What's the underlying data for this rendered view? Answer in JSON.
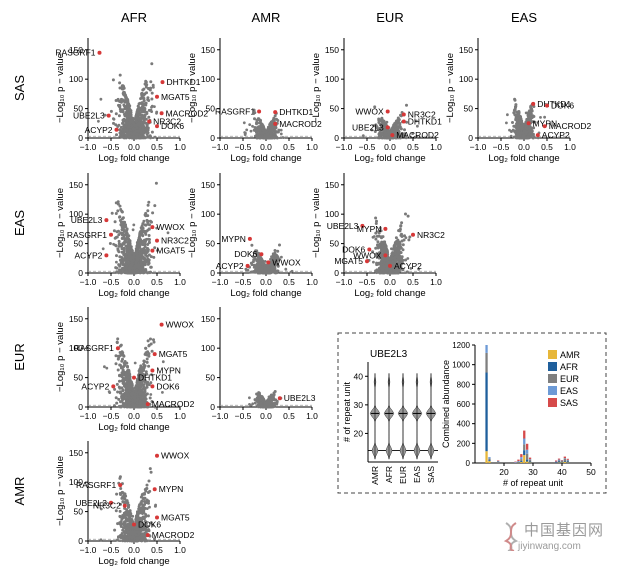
{
  "figure": {
    "column_titles": [
      "AFR",
      "AMR",
      "EUR",
      "EAS"
    ],
    "row_titles": [
      "SAS",
      "EAS",
      "EUR",
      "AMR"
    ],
    "x_label": "Log₂ fold change",
    "y_label": "−Log₁₀ p − value",
    "x_tick_labels": [
      "−1.0",
      "−0.5",
      "0.0",
      "0.5",
      "1.0"
    ],
    "y_tick_labels": [
      "0",
      "50",
      "100",
      "150"
    ],
    "colors": {
      "points": "#7a7a7a",
      "highlight": "#d63838",
      "threshold": "#9a9a9a",
      "frame": "#000000"
    }
  },
  "chart_data": [
    {
      "type": "scatter",
      "row": "SAS",
      "column": "AFR",
      "xlabel": "Log₂ fold change",
      "ylabel": "−Log₁₀ p − value",
      "xlim": [
        -1.0,
        1.0
      ],
      "ylim": [
        0,
        170
      ],
      "spread": 1.0,
      "peak": 155,
      "threshold": 3,
      "genes": [
        {
          "name": "RASGRF1",
          "x": -0.75,
          "y": 145
        },
        {
          "name": "DHTKD1",
          "x": 0.62,
          "y": 95
        },
        {
          "name": "MGAT5",
          "x": 0.5,
          "y": 70
        },
        {
          "name": "MACROD2",
          "x": 0.6,
          "y": 42
        },
        {
          "name": "NR3C2",
          "x": 0.33,
          "y": 28
        },
        {
          "name": "DOK6",
          "x": 0.5,
          "y": 20
        },
        {
          "name": "UBE2L3",
          "x": -0.55,
          "y": 38
        },
        {
          "name": "ACYP2",
          "x": -0.38,
          "y": 14
        }
      ]
    },
    {
      "type": "scatter",
      "row": "SAS",
      "column": "AMR",
      "xlabel": "Log₂ fold change",
      "ylabel": "−Log₁₀ p − value",
      "xlim": [
        -1.0,
        1.0
      ],
      "ylim": [
        0,
        170
      ],
      "spread": 0.6,
      "peak": 55,
      "threshold": 3,
      "genes": [
        {
          "name": "RASGRF1",
          "x": -0.15,
          "y": 45
        },
        {
          "name": "DHTKD1",
          "x": 0.2,
          "y": 44
        },
        {
          "name": "MACROD2",
          "x": 0.2,
          "y": 24
        }
      ]
    },
    {
      "type": "scatter",
      "row": "SAS",
      "column": "EUR",
      "xlabel": "Log₂ fold change",
      "ylabel": "−Log₁₀ p − value",
      "xlim": [
        -1.0,
        1.0
      ],
      "ylim": [
        0,
        170
      ],
      "spread": 0.75,
      "peak": 58,
      "threshold": 3,
      "genes": [
        {
          "name": "WWOX",
          "x": -0.05,
          "y": 45
        },
        {
          "name": "NR3C2",
          "x": 0.3,
          "y": 40
        },
        {
          "name": "UBE2L3",
          "x": -0.05,
          "y": 18
        },
        {
          "name": "DHTKD1",
          "x": 0.3,
          "y": 28
        },
        {
          "name": "MACROD2",
          "x": 0.05,
          "y": 5
        }
      ]
    },
    {
      "type": "scatter",
      "row": "SAS",
      "column": "EAS",
      "xlabel": "Log₂ fold change",
      "ylabel": "−Log₁₀ p − value",
      "xlim": [
        -1.0,
        1.0
      ],
      "ylim": [
        0,
        170
      ],
      "spread": 0.6,
      "peak": 88,
      "threshold": 3,
      "genes": [
        {
          "name": "DHTKD1",
          "x": 0.2,
          "y": 58
        },
        {
          "name": "DOK6",
          "x": 0.5,
          "y": 55
        },
        {
          "name": "MYPN",
          "x": 0.1,
          "y": 25
        },
        {
          "name": "MACROD2",
          "x": 0.45,
          "y": 20
        },
        {
          "name": "ACYP2",
          "x": 0.3,
          "y": 5
        }
      ]
    },
    {
      "type": "scatter",
      "row": "EAS",
      "column": "AFR",
      "xlabel": "Log₂ fold change",
      "ylabel": "−Log₁₀ p − value",
      "xlim": [
        -1.0,
        1.0
      ],
      "ylim": [
        0,
        170
      ],
      "spread": 1.0,
      "peak": 165,
      "threshold": 3,
      "genes": [
        {
          "name": "UBE2L3",
          "x": -0.6,
          "y": 90
        },
        {
          "name": "RASGRF1",
          "x": -0.5,
          "y": 65
        },
        {
          "name": "WWOX",
          "x": 0.4,
          "y": 78
        },
        {
          "name": "NR3C2",
          "x": 0.5,
          "y": 55
        },
        {
          "name": "MGAT5",
          "x": 0.4,
          "y": 38
        },
        {
          "name": "ACYP2",
          "x": -0.6,
          "y": 30
        }
      ]
    },
    {
      "type": "scatter",
      "row": "EAS",
      "column": "AMR",
      "xlabel": "Log₂ fold change",
      "ylabel": "−Log₁₀ p − value",
      "xlim": [
        -1.0,
        1.0
      ],
      "ylim": [
        0,
        170
      ],
      "spread": 0.75,
      "peak": 60,
      "threshold": 3,
      "genes": [
        {
          "name": "MYPN",
          "x": -0.35,
          "y": 58
        },
        {
          "name": "DOK6",
          "x": -0.1,
          "y": 32
        },
        {
          "name": "WWOX",
          "x": 0.05,
          "y": 18
        },
        {
          "name": "ACYP2",
          "x": -0.4,
          "y": 12
        }
      ]
    },
    {
      "type": "scatter",
      "row": "EAS",
      "column": "EUR",
      "xlabel": "Log₂ fold change",
      "ylabel": "−Log₁₀ p − value",
      "xlim": [
        -1.0,
        1.0
      ],
      "ylim": [
        0,
        170
      ],
      "spread": 0.85,
      "peak": 125,
      "threshold": 3,
      "genes": [
        {
          "name": "UBE2L3",
          "x": -0.6,
          "y": 80
        },
        {
          "name": "MYPN",
          "x": -0.1,
          "y": 75
        },
        {
          "name": "NR3C2",
          "x": 0.5,
          "y": 65
        },
        {
          "name": "DOK6",
          "x": -0.45,
          "y": 40
        },
        {
          "name": "WWOX",
          "x": -0.1,
          "y": 30
        },
        {
          "name": "MGAT5",
          "x": -0.5,
          "y": 20
        },
        {
          "name": "ACYP2",
          "x": 0.0,
          "y": 12
        }
      ]
    },
    {
      "type": "scatter",
      "row": "EUR",
      "column": "AFR",
      "xlabel": "Log₂ fold change",
      "ylabel": "−Log₁₀ p − value",
      "xlim": [
        -1.0,
        1.0
      ],
      "ylim": [
        0,
        170
      ],
      "spread": 0.95,
      "peak": 155,
      "threshold": 3,
      "genes": [
        {
          "name": "WWOX",
          "x": 0.6,
          "y": 140
        },
        {
          "name": "RASGRF1",
          "x": -0.35,
          "y": 100
        },
        {
          "name": "MGAT5",
          "x": 0.45,
          "y": 90
        },
        {
          "name": "MYPN",
          "x": 0.4,
          "y": 62
        },
        {
          "name": "DHTKD1",
          "x": 0.0,
          "y": 50
        },
        {
          "name": "DOK6",
          "x": 0.4,
          "y": 35
        },
        {
          "name": "ACYP2",
          "x": -0.45,
          "y": 35
        },
        {
          "name": "MACROD2",
          "x": 0.3,
          "y": 5
        }
      ]
    },
    {
      "type": "scatter",
      "row": "EUR",
      "column": "AMR",
      "xlabel": "",
      "ylabel": "",
      "xlim": [
        -1.0,
        1.0
      ],
      "ylim": [
        0,
        170
      ],
      "spread": 0.55,
      "peak": 38,
      "threshold": 3,
      "genes": [
        {
          "name": "UBE2L3",
          "x": 0.3,
          "y": 15
        }
      ]
    },
    {
      "type": "scatter",
      "row": "AMR",
      "column": "AFR",
      "xlabel": "Log₂ fold change",
      "ylabel": "−Log₁₀ p − value",
      "xlim": [
        -1.0,
        1.0
      ],
      "ylim": [
        0,
        170
      ],
      "spread": 0.9,
      "peak": 150,
      "threshold": 3,
      "genes": [
        {
          "name": "WWOX",
          "x": 0.5,
          "y": 145
        },
        {
          "name": "RASGRF1",
          "x": -0.3,
          "y": 95
        },
        {
          "name": "MYPN",
          "x": 0.45,
          "y": 88
        },
        {
          "name": "UBE2L3",
          "x": -0.5,
          "y": 65
        },
        {
          "name": "NR3C2",
          "x": -0.2,
          "y": 60
        },
        {
          "name": "MGAT5",
          "x": 0.5,
          "y": 40
        },
        {
          "name": "DOK6",
          "x": 0.0,
          "y": 28
        },
        {
          "name": "MACROD2",
          "x": 0.3,
          "y": 10
        }
      ]
    },
    {
      "type": "violin",
      "title": "UBE2L3",
      "ylabel": "# of repeat unit",
      "categories": [
        "AMR",
        "AFR",
        "EUR",
        "EAS",
        "SAS"
      ],
      "ylim": [
        10,
        45
      ],
      "y_ticks": [
        20,
        30,
        40
      ],
      "threshold": 14,
      "mass": [
        [
          14,
          0.35
        ],
        [
          27,
          0.55
        ],
        [
          38,
          0.1
        ]
      ]
    },
    {
      "type": "bar",
      "stacked": true,
      "xlabel": "# of repeat unit",
      "ylabel": "Combined abundance",
      "xlim": [
        10,
        50
      ],
      "ylim": [
        0,
        1200
      ],
      "x_ticks": [
        20,
        30,
        40,
        50
      ],
      "y_ticks": [
        0,
        200,
        400,
        600,
        800,
        1000,
        1200
      ],
      "legend_position": "top-right",
      "series": [
        {
          "name": "AMR",
          "color": "#e7b73a"
        },
        {
          "name": "AFR",
          "color": "#1f5f9c"
        },
        {
          "name": "EUR",
          "color": "#7f7f7f"
        },
        {
          "name": "EAS",
          "color": "#6d9ad6"
        },
        {
          "name": "SAS",
          "color": "#d64a4a"
        }
      ],
      "bars": [
        {
          "x": 14,
          "values": [
            120,
            800,
            200,
            80,
            0
          ]
        },
        {
          "x": 15,
          "values": [
            20,
            10,
            15,
            15,
            0
          ]
        },
        {
          "x": 18,
          "values": [
            0,
            0,
            15,
            5,
            5
          ]
        },
        {
          "x": 24,
          "values": [
            0,
            0,
            0,
            8,
            6
          ]
        },
        {
          "x": 25,
          "values": [
            5,
            5,
            0,
            10,
            15
          ]
        },
        {
          "x": 26,
          "values": [
            10,
            10,
            20,
            20,
            30
          ]
        },
        {
          "x": 27,
          "values": [
            80,
            50,
            60,
            60,
            80
          ]
        },
        {
          "x": 28,
          "values": [
            15,
            20,
            60,
            40,
            60
          ]
        },
        {
          "x": 29,
          "values": [
            5,
            10,
            20,
            5,
            15
          ]
        },
        {
          "x": 38,
          "values": [
            0,
            5,
            5,
            5,
            10
          ]
        },
        {
          "x": 39,
          "values": [
            5,
            10,
            10,
            10,
            10
          ]
        },
        {
          "x": 40,
          "values": [
            5,
            5,
            10,
            5,
            5
          ]
        },
        {
          "x": 41,
          "values": [
            10,
            5,
            30,
            5,
            15
          ]
        },
        {
          "x": 42,
          "values": [
            5,
            10,
            10,
            8,
            10
          ]
        }
      ]
    }
  ],
  "watermark": {
    "text": "中国基因网",
    "url": "jiyinwang.com"
  }
}
